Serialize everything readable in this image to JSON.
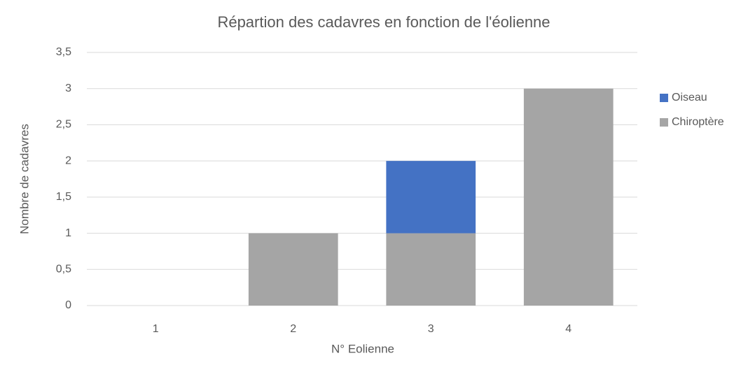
{
  "chart_data": {
    "type": "stacked_bar",
    "title": "Répartion des cadavres en fonction de l'éolienne",
    "x_label": "N° Eolienne",
    "y_label": "Nombre de cadavres",
    "categories": [
      "1",
      "2",
      "3",
      "4"
    ],
    "series": [
      {
        "name": "Chiroptère",
        "color": "#a5a5a5",
        "values": [
          0,
          1,
          1,
          3
        ]
      },
      {
        "name": "Oiseau",
        "color": "#4472c4",
        "values": [
          0,
          0,
          1,
          0
        ]
      }
    ],
    "ylim": [
      0,
      3.5
    ],
    "yticks": [
      0,
      {
        "value": 0.5,
        "label": "0,5"
      },
      1,
      {
        "value": 1.5,
        "label": "1,5"
      },
      2,
      {
        "value": 2.5,
        "label": "2,5"
      },
      3,
      {
        "value": 3.5,
        "label": "3,5"
      }
    ],
    "grid": true,
    "legend": "right"
  }
}
